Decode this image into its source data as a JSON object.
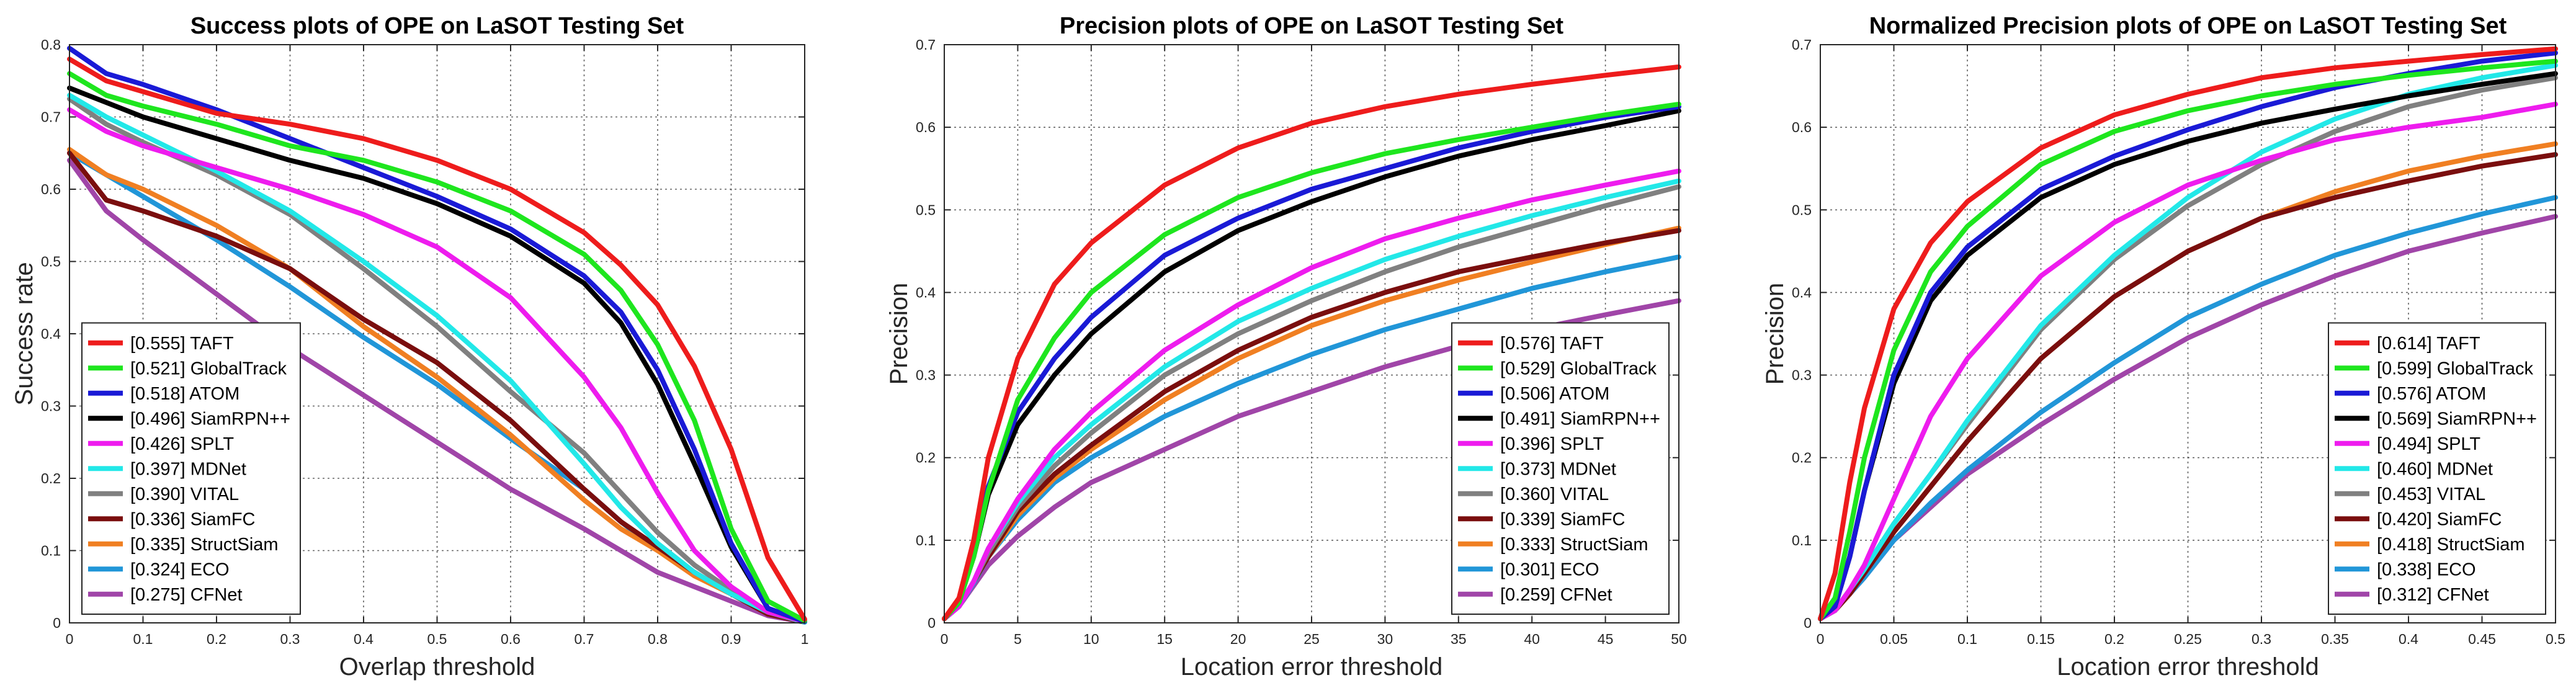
{
  "chart_data": [
    {
      "type": "line",
      "title": "Success plots of OPE on LaSOT Testing Set",
      "xlabel": "Overlap threshold",
      "ylabel": "Success rate",
      "xlim": [
        0,
        1
      ],
      "ylim": [
        0,
        0.8
      ],
      "xticks": [
        0,
        0.1,
        0.2,
        0.3,
        0.4,
        0.5,
        0.6,
        0.7,
        0.8,
        0.9,
        1
      ],
      "yticks": [
        0,
        0.1,
        0.2,
        0.3,
        0.4,
        0.5,
        0.6,
        0.7,
        0.8
      ],
      "xtick_labels": [
        "0",
        "0.1",
        "0.2",
        "0.3",
        "0.4",
        "0.5",
        "0.6",
        "0.7",
        "0.8",
        "0.9",
        "1"
      ],
      "ytick_labels": [
        "0",
        "0.1",
        "0.2",
        "0.3",
        "0.4",
        "0.5",
        "0.6",
        "0.7",
        "0.8"
      ],
      "grid": true,
      "legend_position": "bottom-left",
      "x": [
        0,
        0.05,
        0.1,
        0.2,
        0.3,
        0.4,
        0.5,
        0.6,
        0.7,
        0.75,
        0.8,
        0.85,
        0.9,
        0.95,
        1
      ],
      "series": [
        {
          "name": "TAFT",
          "label": "[0.555] TAFT",
          "color": "#ee1c1c",
          "values": [
            0.78,
            0.75,
            0.735,
            0.705,
            0.69,
            0.67,
            0.64,
            0.6,
            0.54,
            0.495,
            0.44,
            0.355,
            0.24,
            0.09,
            0.005
          ]
        },
        {
          "name": "GlobalTrack",
          "label": "[0.521] GlobalTrack",
          "color": "#1ee61e",
          "values": [
            0.76,
            0.73,
            0.715,
            0.69,
            0.66,
            0.64,
            0.61,
            0.57,
            0.51,
            0.46,
            0.385,
            0.28,
            0.13,
            0.03,
            0.003
          ]
        },
        {
          "name": "ATOM",
          "label": "[0.518] ATOM",
          "color": "#1a1ad6",
          "values": [
            0.795,
            0.76,
            0.745,
            0.71,
            0.67,
            0.63,
            0.59,
            0.545,
            0.48,
            0.43,
            0.35,
            0.24,
            0.11,
            0.02,
            0.002
          ]
        },
        {
          "name": "SiamRPN++",
          "label": "[0.496] SiamRPN++",
          "color": "#000000",
          "values": [
            0.74,
            0.72,
            0.7,
            0.67,
            0.64,
            0.615,
            0.58,
            0.535,
            0.47,
            0.415,
            0.33,
            0.22,
            0.105,
            0.02,
            0.002
          ]
        },
        {
          "name": "SPLT",
          "label": "[0.426] SPLT",
          "color": "#ee1cee",
          "values": [
            0.71,
            0.68,
            0.66,
            0.63,
            0.6,
            0.565,
            0.52,
            0.45,
            0.34,
            0.27,
            0.18,
            0.1,
            0.05,
            0.015,
            0.002
          ]
        },
        {
          "name": "MDNet",
          "label": "[0.397] MDNet",
          "color": "#22e8e8",
          "values": [
            0.73,
            0.7,
            0.675,
            0.625,
            0.57,
            0.5,
            0.425,
            0.335,
            0.22,
            0.16,
            0.11,
            0.07,
            0.04,
            0.015,
            0.001
          ]
        },
        {
          "name": "VITAL",
          "label": "[0.390] VITAL",
          "color": "#808080",
          "values": [
            0.725,
            0.69,
            0.665,
            0.62,
            0.565,
            0.49,
            0.41,
            0.32,
            0.235,
            0.18,
            0.125,
            0.08,
            0.045,
            0.015,
            0.001
          ]
        },
        {
          "name": "SiamFC",
          "label": "[0.336] SiamFC",
          "color": "#7a0e0e",
          "values": [
            0.65,
            0.585,
            0.57,
            0.535,
            0.49,
            0.42,
            0.36,
            0.28,
            0.185,
            0.14,
            0.105,
            0.07,
            0.04,
            0.012,
            0.001
          ]
        },
        {
          "name": "StructSiam",
          "label": "[0.335] StructSiam",
          "color": "#f07f22",
          "values": [
            0.655,
            0.62,
            0.6,
            0.55,
            0.49,
            0.41,
            0.34,
            0.26,
            0.17,
            0.13,
            0.1,
            0.065,
            0.04,
            0.012,
            0.001
          ]
        },
        {
          "name": "ECO",
          "label": "[0.324] ECO",
          "color": "#2196d8",
          "values": [
            0.65,
            0.62,
            0.59,
            0.53,
            0.465,
            0.395,
            0.33,
            0.255,
            0.185,
            0.14,
            0.1,
            0.07,
            0.04,
            0.012,
            0.001
          ]
        },
        {
          "name": "CFNet",
          "label": "[0.275] CFNet",
          "color": "#a045a8",
          "values": [
            0.64,
            0.57,
            0.53,
            0.455,
            0.38,
            0.315,
            0.25,
            0.185,
            0.13,
            0.1,
            0.07,
            0.05,
            0.03,
            0.01,
            0.001
          ]
        }
      ]
    },
    {
      "type": "line",
      "title": "Precision plots of OPE on LaSOT Testing Set",
      "xlabel": "Location error threshold",
      "ylabel": "Precision",
      "xlim": [
        0,
        50
      ],
      "ylim": [
        0,
        0.7
      ],
      "xticks": [
        0,
        5,
        10,
        15,
        20,
        25,
        30,
        35,
        40,
        45,
        50
      ],
      "yticks": [
        0,
        0.1,
        0.2,
        0.3,
        0.4,
        0.5,
        0.6,
        0.7
      ],
      "xtick_labels": [
        "0",
        "5",
        "10",
        "15",
        "20",
        "25",
        "30",
        "35",
        "40",
        "45",
        "50"
      ],
      "ytick_labels": [
        "0",
        "0.1",
        "0.2",
        "0.3",
        "0.4",
        "0.5",
        "0.6",
        "0.7"
      ],
      "grid": true,
      "legend_position": "bottom-right",
      "x": [
        0,
        1,
        2,
        3,
        5,
        7.5,
        10,
        15,
        20,
        25,
        30,
        35,
        40,
        45,
        50
      ],
      "series": [
        {
          "name": "TAFT",
          "label": "[0.576] TAFT",
          "color": "#ee1c1c",
          "values": [
            0.005,
            0.03,
            0.1,
            0.2,
            0.32,
            0.41,
            0.46,
            0.53,
            0.575,
            0.605,
            0.625,
            0.64,
            0.652,
            0.663,
            0.673
          ]
        },
        {
          "name": "GlobalTrack",
          "label": "[0.529] GlobalTrack",
          "color": "#1ee61e",
          "values": [
            0.005,
            0.025,
            0.08,
            0.16,
            0.27,
            0.345,
            0.4,
            0.47,
            0.515,
            0.545,
            0.568,
            0.585,
            0.6,
            0.615,
            0.628
          ]
        },
        {
          "name": "ATOM",
          "label": "[0.506] ATOM",
          "color": "#1a1ad6",
          "values": [
            0.005,
            0.028,
            0.085,
            0.165,
            0.255,
            0.32,
            0.37,
            0.445,
            0.49,
            0.525,
            0.55,
            0.575,
            0.595,
            0.612,
            0.625
          ]
        },
        {
          "name": "SiamRPN++",
          "label": "[0.491] SiamRPN++",
          "color": "#000000",
          "values": [
            0.005,
            0.025,
            0.08,
            0.155,
            0.24,
            0.3,
            0.35,
            0.425,
            0.475,
            0.51,
            0.54,
            0.565,
            0.585,
            0.602,
            0.62
          ]
        },
        {
          "name": "SPLT",
          "label": "[0.396] SPLT",
          "color": "#ee1cee",
          "values": [
            0.005,
            0.02,
            0.05,
            0.09,
            0.15,
            0.21,
            0.255,
            0.33,
            0.385,
            0.43,
            0.465,
            0.49,
            0.512,
            0.53,
            0.547
          ]
        },
        {
          "name": "MDNet",
          "label": "[0.373] MDNet",
          "color": "#22e8e8",
          "values": [
            0.005,
            0.02,
            0.05,
            0.09,
            0.145,
            0.2,
            0.24,
            0.31,
            0.365,
            0.405,
            0.44,
            0.468,
            0.493,
            0.515,
            0.535
          ]
        },
        {
          "name": "VITAL",
          "label": "[0.360] VITAL",
          "color": "#808080",
          "values": [
            0.005,
            0.02,
            0.05,
            0.085,
            0.14,
            0.19,
            0.23,
            0.3,
            0.35,
            0.39,
            0.425,
            0.455,
            0.48,
            0.505,
            0.528
          ]
        },
        {
          "name": "SiamFC",
          "label": "[0.339] SiamFC",
          "color": "#7a0e0e",
          "values": [
            0.005,
            0.02,
            0.05,
            0.08,
            0.135,
            0.18,
            0.215,
            0.28,
            0.33,
            0.37,
            0.4,
            0.425,
            0.443,
            0.46,
            0.475
          ]
        },
        {
          "name": "StructSiam",
          "label": "[0.333] StructSiam",
          "color": "#f07f22",
          "values": [
            0.005,
            0.02,
            0.05,
            0.08,
            0.13,
            0.175,
            0.21,
            0.27,
            0.32,
            0.36,
            0.39,
            0.415,
            0.437,
            0.458,
            0.478
          ]
        },
        {
          "name": "ECO",
          "label": "[0.301] ECO",
          "color": "#2196d8",
          "values": [
            0.005,
            0.02,
            0.048,
            0.08,
            0.125,
            0.17,
            0.2,
            0.25,
            0.29,
            0.325,
            0.355,
            0.38,
            0.405,
            0.425,
            0.443
          ]
        },
        {
          "name": "CFNet",
          "label": "[0.259] CFNet",
          "color": "#a045a8",
          "values": [
            0.005,
            0.02,
            0.045,
            0.07,
            0.105,
            0.14,
            0.17,
            0.21,
            0.25,
            0.28,
            0.31,
            0.335,
            0.355,
            0.373,
            0.39
          ]
        }
      ]
    },
    {
      "type": "line",
      "title": "Normalized Precision plots of OPE on LaSOT Testing Set",
      "xlabel": "Location error threshold",
      "ylabel": "Precision",
      "xlim": [
        0,
        0.5
      ],
      "ylim": [
        0,
        0.7
      ],
      "xticks": [
        0,
        0.05,
        0.1,
        0.15,
        0.2,
        0.25,
        0.3,
        0.35,
        0.4,
        0.45,
        0.5
      ],
      "yticks": [
        0,
        0.1,
        0.2,
        0.3,
        0.4,
        0.5,
        0.6,
        0.7
      ],
      "xtick_labels": [
        "0",
        "0.05",
        "0.1",
        "0.15",
        "0.2",
        "0.25",
        "0.3",
        "0.35",
        "0.4",
        "0.45",
        "0.5"
      ],
      "ytick_labels": [
        "0",
        "0.1",
        "0.2",
        "0.3",
        "0.4",
        "0.5",
        "0.6",
        "0.7"
      ],
      "grid": true,
      "legend_position": "bottom-right",
      "x": [
        0,
        0.01,
        0.02,
        0.03,
        0.05,
        0.075,
        0.1,
        0.15,
        0.2,
        0.25,
        0.3,
        0.35,
        0.4,
        0.45,
        0.5
      ],
      "series": [
        {
          "name": "TAFT",
          "label": "[0.614] TAFT",
          "color": "#ee1c1c",
          "values": [
            0.005,
            0.06,
            0.17,
            0.26,
            0.38,
            0.46,
            0.51,
            0.575,
            0.615,
            0.64,
            0.66,
            0.672,
            0.68,
            0.688,
            0.695
          ]
        },
        {
          "name": "GlobalTrack",
          "label": "[0.599] GlobalTrack",
          "color": "#1ee61e",
          "values": [
            0.005,
            0.03,
            0.11,
            0.2,
            0.33,
            0.425,
            0.48,
            0.555,
            0.595,
            0.62,
            0.638,
            0.652,
            0.663,
            0.672,
            0.68
          ]
        },
        {
          "name": "ATOM",
          "label": "[0.576] ATOM",
          "color": "#1a1ad6",
          "values": [
            0.005,
            0.02,
            0.08,
            0.16,
            0.3,
            0.4,
            0.455,
            0.525,
            0.565,
            0.597,
            0.625,
            0.648,
            0.665,
            0.68,
            0.69
          ]
        },
        {
          "name": "SiamRPN++",
          "label": "[0.569] SiamRPN++",
          "color": "#000000",
          "values": [
            0.005,
            0.02,
            0.08,
            0.16,
            0.29,
            0.39,
            0.445,
            0.515,
            0.555,
            0.583,
            0.605,
            0.622,
            0.638,
            0.652,
            0.665
          ]
        },
        {
          "name": "SPLT",
          "label": "[0.494] SPLT",
          "color": "#ee1cee",
          "values": [
            0.005,
            0.015,
            0.04,
            0.07,
            0.15,
            0.25,
            0.32,
            0.42,
            0.485,
            0.53,
            0.56,
            0.585,
            0.6,
            0.612,
            0.628
          ]
        },
        {
          "name": "MDNet",
          "label": "[0.460] MDNet",
          "color": "#22e8e8",
          "values": [
            0.005,
            0.015,
            0.04,
            0.065,
            0.12,
            0.18,
            0.245,
            0.36,
            0.445,
            0.515,
            0.57,
            0.61,
            0.64,
            0.66,
            0.675
          ]
        },
        {
          "name": "VITAL",
          "label": "[0.453] VITAL",
          "color": "#808080",
          "values": [
            0.005,
            0.015,
            0.04,
            0.065,
            0.12,
            0.18,
            0.24,
            0.355,
            0.44,
            0.505,
            0.555,
            0.595,
            0.625,
            0.645,
            0.66
          ]
        },
        {
          "name": "SiamFC",
          "label": "[0.420] SiamFC",
          "color": "#7a0e0e",
          "values": [
            0.005,
            0.015,
            0.035,
            0.06,
            0.11,
            0.165,
            0.22,
            0.32,
            0.395,
            0.45,
            0.49,
            0.515,
            0.535,
            0.553,
            0.567
          ]
        },
        {
          "name": "StructSiam",
          "label": "[0.418] StructSiam",
          "color": "#f07f22",
          "values": [
            0.005,
            0.015,
            0.035,
            0.06,
            0.11,
            0.165,
            0.22,
            0.32,
            0.395,
            0.45,
            0.49,
            0.522,
            0.547,
            0.565,
            0.58
          ]
        },
        {
          "name": "ECO",
          "label": "[0.338] ECO",
          "color": "#2196d8",
          "values": [
            0.005,
            0.015,
            0.035,
            0.055,
            0.1,
            0.145,
            0.185,
            0.255,
            0.315,
            0.37,
            0.41,
            0.445,
            0.472,
            0.495,
            0.515
          ]
        },
        {
          "name": "CFNet",
          "label": "[0.312] CFNet",
          "color": "#a045a8",
          "values": [
            0.005,
            0.015,
            0.035,
            0.055,
            0.1,
            0.14,
            0.18,
            0.24,
            0.295,
            0.345,
            0.385,
            0.42,
            0.45,
            0.472,
            0.492
          ]
        }
      ]
    }
  ]
}
